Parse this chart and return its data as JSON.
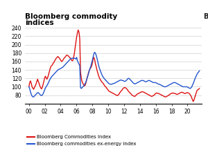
{
  "title_line1": "Bloomberg commodity",
  "title_line2": "indices",
  "ylim": [
    60,
    250
  ],
  "yticks": [
    80,
    100,
    120,
    140,
    160,
    180,
    200,
    220,
    240
  ],
  "xtick_labels": [
    "00",
    "02",
    "04",
    "06",
    "08",
    "10",
    "12",
    "14",
    "16",
    "18",
    "20"
  ],
  "background_color": "#ffffff",
  "grid_color": "#d0d0d0",
  "red_color": "#dd1111",
  "blue_color": "#2255cc",
  "legend1": "Bloomberg Commodities Index",
  "legend2": "Bloomberg commodities ex-energy index",
  "red_series": [
    100,
    110,
    114,
    108,
    100,
    97,
    94,
    98,
    102,
    106,
    112,
    118,
    113,
    108,
    102,
    98,
    95,
    98,
    105,
    112,
    120,
    125,
    122,
    118,
    122,
    128,
    135,
    142,
    148,
    150,
    152,
    156,
    158,
    162,
    165,
    168,
    170,
    172,
    170,
    168,
    165,
    162,
    160,
    162,
    165,
    168,
    170,
    172,
    175,
    175,
    174,
    172,
    170,
    168,
    165,
    162,
    162,
    168,
    178,
    192,
    205,
    218,
    228,
    235,
    230,
    215,
    135,
    120,
    112,
    108,
    105,
    102,
    104,
    110,
    118,
    125,
    132,
    138,
    142,
    145,
    148,
    155,
    165,
    170,
    165,
    155,
    148,
    140,
    133,
    127,
    122,
    118,
    115,
    112,
    110,
    108,
    105,
    102,
    100,
    98,
    95,
    93,
    90,
    89,
    88,
    87,
    86,
    85,
    84,
    83,
    82,
    81,
    80,
    79,
    80,
    82,
    85,
    88,
    90,
    92,
    95,
    97,
    98,
    98,
    97,
    95,
    93,
    90,
    88,
    86,
    84,
    82,
    80,
    79,
    78,
    77,
    78,
    80,
    82,
    83,
    84,
    85,
    86,
    87,
    88,
    88,
    88,
    87,
    86,
    85,
    84,
    83,
    82,
    81,
    80,
    79,
    78,
    77,
    78,
    79,
    80,
    82,
    84,
    85,
    85,
    84,
    84,
    83,
    82,
    81,
    80,
    79,
    78,
    77,
    76,
    76,
    77,
    78,
    79,
    80,
    82,
    83,
    84,
    85,
    85,
    85,
    84,
    84,
    83,
    82,
    82,
    83,
    84,
    85,
    86,
    87,
    87,
    86,
    85,
    84,
    84,
    85,
    86,
    86,
    85,
    84,
    82,
    79,
    75,
    70,
    65,
    68,
    74,
    80,
    86,
    91,
    93,
    94,
    96
  ],
  "blue_series": [
    100,
    95,
    88,
    82,
    78,
    76,
    76,
    78,
    80,
    82,
    84,
    86,
    86,
    84,
    82,
    80,
    79,
    80,
    83,
    87,
    92,
    97,
    100,
    103,
    106,
    110,
    114,
    118,
    121,
    124,
    126,
    128,
    130,
    132,
    134,
    136,
    138,
    140,
    141,
    142,
    143,
    144,
    145,
    146,
    148,
    150,
    152,
    154,
    156,
    158,
    160,
    162,
    164,
    166,
    167,
    168,
    168,
    168,
    168,
    167,
    166,
    170,
    162,
    158,
    154,
    150,
    98,
    96,
    98,
    100,
    102,
    105,
    108,
    112,
    118,
    124,
    130,
    137,
    143,
    148,
    155,
    162,
    170,
    178,
    182,
    180,
    175,
    168,
    160,
    152,
    145,
    140,
    135,
    130,
    126,
    123,
    120,
    118,
    116,
    114,
    112,
    110,
    108,
    107,
    106,
    106,
    106,
    107,
    108,
    108,
    109,
    110,
    111,
    112,
    113,
    114,
    115,
    116,
    116,
    115,
    115,
    114,
    113,
    113,
    114,
    116,
    118,
    120,
    120,
    118,
    116,
    114,
    112,
    110,
    108,
    107,
    107,
    108,
    109,
    110,
    111,
    112,
    113,
    114,
    115,
    115,
    115,
    114,
    113,
    112,
    112,
    113,
    114,
    115,
    115,
    114,
    113,
    112,
    111,
    110,
    110,
    110,
    110,
    109,
    108,
    107,
    106,
    106,
    105,
    104,
    103,
    102,
    101,
    100,
    100,
    100,
    101,
    102,
    103,
    104,
    105,
    106,
    107,
    108,
    109,
    110,
    110,
    110,
    109,
    108,
    107,
    106,
    105,
    104,
    103,
    102,
    101,
    100,
    100,
    100,
    100,
    100,
    100,
    99,
    98,
    97,
    96,
    97,
    99,
    103,
    107,
    112,
    117,
    122,
    126,
    130,
    133,
    135,
    138
  ]
}
